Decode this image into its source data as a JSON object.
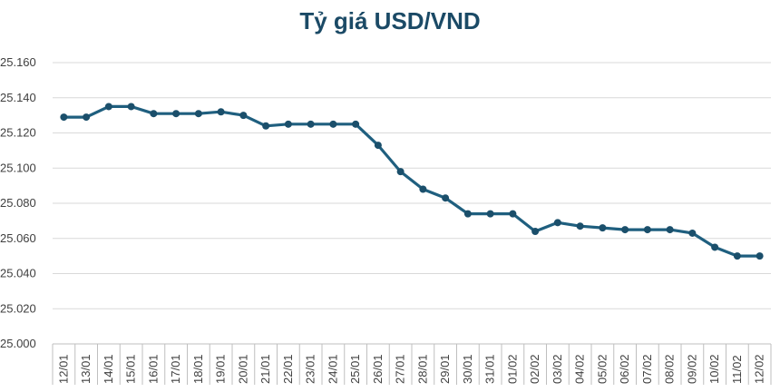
{
  "colors": {
    "line": "#1f5f7f",
    "marker": "#1b4f6b",
    "title": "#1b4a66",
    "grid": "#d9d9d9"
  },
  "chart_data": {
    "type": "line",
    "title": "Tỷ giá USD/VND",
    "xlabel": "",
    "ylabel": "",
    "ylim": [
      25.0,
      25.16
    ],
    "ytick_labels": [
      "25.000",
      "25.020",
      "25.040",
      "25.060",
      "25.080",
      "25.100",
      "25.120",
      "25.140",
      "25.160"
    ],
    "categories": [
      "12/01",
      "13/01",
      "14/01",
      "15/01",
      "16/01",
      "17/01",
      "18/01",
      "19/01",
      "20/01",
      "21/01",
      "22/01",
      "23/01",
      "24/01",
      "25/01",
      "26/01",
      "27/01",
      "28/01",
      "29/01",
      "30/01",
      "31/01",
      "01/02",
      "02/02",
      "03/02",
      "04/02",
      "05/02",
      "06/02",
      "07/02",
      "08/02",
      "09/02",
      "10/02",
      "11/02",
      "12/02"
    ],
    "series": [
      {
        "values": [
          25.129,
          25.129,
          25.135,
          25.135,
          25.131,
          25.131,
          25.131,
          25.132,
          25.13,
          25.124,
          25.125,
          25.125,
          25.125,
          25.125,
          25.113,
          25.098,
          25.088,
          25.083,
          25.074,
          25.074,
          25.074,
          25.064,
          25.069,
          25.067,
          25.066,
          25.065,
          25.065,
          25.065,
          25.063,
          25.055,
          25.05,
          25.05
        ]
      }
    ],
    "grid": "horizontal",
    "legend": "none"
  }
}
